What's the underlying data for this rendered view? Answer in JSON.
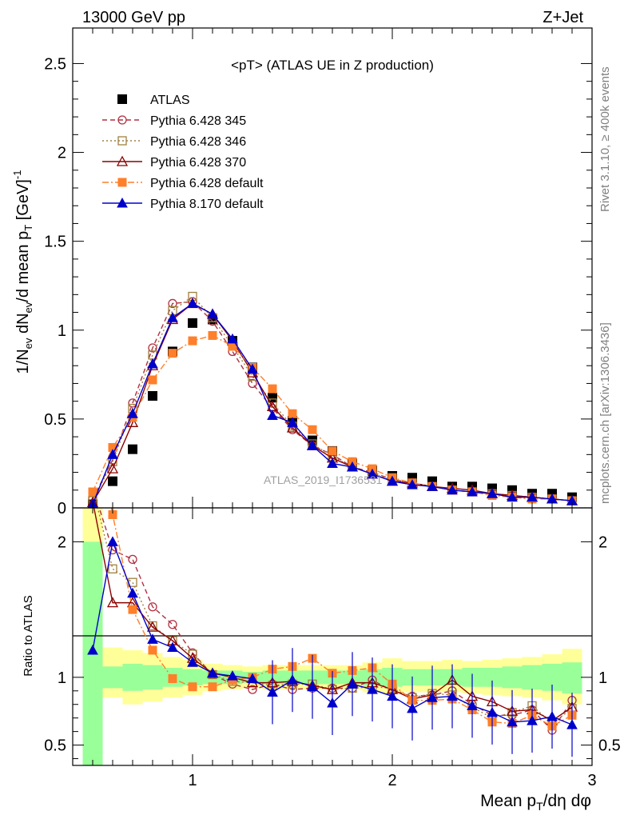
{
  "header": {
    "energy": "13000 GeV pp",
    "process": "Z+Jet"
  },
  "side_labels": {
    "rivet": "Rivet 3.1.10, ≥ 400k events",
    "source": "mcplots.cern.ch [arXiv:1306.3436]"
  },
  "watermark": "ATLAS_2019_I1736531",
  "colors": {
    "ATLAS": "#000000",
    "p345": "#b03040",
    "p346": "#a08040",
    "p370": "#8b0000",
    "p6def": "#ff7f2a",
    "p8def": "#0000cc",
    "band_yellow": "#ffff99",
    "band_green": "#99ff99"
  },
  "chart_data": [
    {
      "id": "main",
      "type": "line",
      "title": "<pT> (ATLAS UE in Z production)",
      "ylabel": "1/N_ev dN_ev/d mean p_T [GeV]^-1",
      "xlim": [
        0.4,
        3.0
      ],
      "ylim": [
        0,
        2.7
      ],
      "yticks": [
        0,
        0.5,
        1,
        1.5,
        2,
        2.5
      ],
      "ytick_labels": [
        "0",
        "0.5",
        "1",
        "1.5",
        "2",
        "2.5"
      ],
      "x": [
        0.5,
        0.6,
        0.7,
        0.8,
        0.9,
        1.0,
        1.1,
        1.2,
        1.3,
        1.4,
        1.5,
        1.6,
        1.7,
        1.8,
        1.9,
        2.0,
        2.1,
        2.2,
        2.3,
        2.4,
        2.5,
        2.6,
        2.7,
        2.8,
        2.9
      ],
      "legend": [
        "ATLAS",
        "Pythia 6.428 345",
        "Pythia 6.428 346",
        "Pythia 6.428 370",
        "Pythia 6.428 default",
        "Pythia 8.170 default"
      ],
      "series": [
        {
          "name": "ATLAS",
          "key": "ATLAS",
          "style": "marker-square",
          "values": [
            0.02,
            0.15,
            0.33,
            0.63,
            0.88,
            1.04,
            1.06,
            0.94,
            0.79,
            0.62,
            0.49,
            0.38,
            0.32,
            0.25,
            0.21,
            0.18,
            0.17,
            0.15,
            0.12,
            0.12,
            0.11,
            0.1,
            0.08,
            0.08,
            0.06
          ]
        },
        {
          "name": "Pythia 6.428 345",
          "key": "p345",
          "style": "dashed-circle",
          "values": [
            0.05,
            0.27,
            0.59,
            0.9,
            1.15,
            1.16,
            1.05,
            0.88,
            0.7,
            0.56,
            0.44,
            0.35,
            0.3,
            0.23,
            0.2,
            0.16,
            0.14,
            0.12,
            0.1,
            0.09,
            0.08,
            0.07,
            0.06,
            0.05,
            0.04
          ]
        },
        {
          "name": "Pythia 6.428 346",
          "key": "p346",
          "style": "dotted-square",
          "values": [
            0.04,
            0.26,
            0.56,
            0.86,
            1.11,
            1.19,
            1.07,
            0.91,
            0.74,
            0.59,
            0.46,
            0.36,
            0.29,
            0.23,
            0.19,
            0.16,
            0.14,
            0.12,
            0.1,
            0.09,
            0.08,
            0.07,
            0.06,
            0.05,
            0.04
          ]
        },
        {
          "name": "Pythia 6.428 370",
          "key": "p370",
          "style": "solid-triangle-open",
          "values": [
            0.03,
            0.22,
            0.48,
            0.8,
            1.06,
            1.15,
            1.09,
            0.94,
            0.76,
            0.57,
            0.45,
            0.35,
            0.28,
            0.23,
            0.19,
            0.15,
            0.14,
            0.12,
            0.11,
            0.1,
            0.08,
            0.07,
            0.06,
            0.05,
            0.04
          ]
        },
        {
          "name": "Pythia 6.428 default",
          "key": "p6def",
          "style": "dashdot-square",
          "values": [
            0.09,
            0.34,
            0.51,
            0.72,
            0.87,
            0.94,
            0.97,
            0.91,
            0.79,
            0.67,
            0.53,
            0.44,
            0.32,
            0.26,
            0.22,
            0.17,
            0.14,
            0.12,
            0.1,
            0.09,
            0.07,
            0.06,
            0.05,
            0.05,
            0.04
          ]
        },
        {
          "name": "Pythia 8.170 default",
          "key": "p8def",
          "style": "solid-triangle-filled",
          "values": [
            0.02,
            0.3,
            0.53,
            0.81,
            1.07,
            1.15,
            1.09,
            0.95,
            0.78,
            0.52,
            0.48,
            0.35,
            0.25,
            0.23,
            0.19,
            0.15,
            0.13,
            0.12,
            0.1,
            0.09,
            0.08,
            0.06,
            0.06,
            0.05,
            0.04
          ]
        }
      ]
    },
    {
      "id": "ratio",
      "type": "line",
      "ylabel": "Ratio to ATLAS",
      "xlabel": "Mean p_T/dη dφ",
      "xlim": [
        0.4,
        3.0
      ],
      "ylim": [
        0.35,
        2.25
      ],
      "yticks": [
        0.5,
        1,
        2
      ],
      "ytick_labels": [
        "0.5",
        "1",
        "2"
      ],
      "xticks": [
        1,
        2,
        3
      ],
      "xtick_labels": [
        "1",
        "2",
        "3"
      ],
      "x": [
        0.5,
        0.6,
        0.7,
        0.8,
        0.9,
        1.0,
        1.1,
        1.2,
        1.3,
        1.4,
        1.5,
        1.6,
        1.7,
        1.8,
        1.9,
        2.0,
        2.1,
        2.2,
        2.3,
        2.4,
        2.5,
        2.6,
        2.7,
        2.8,
        2.9
      ],
      "bands": {
        "edges": [
          0.45,
          0.55,
          0.65,
          0.75,
          0.85,
          0.95,
          1.05,
          1.15,
          1.25,
          1.35,
          1.45,
          1.55,
          1.65,
          1.75,
          1.85,
          1.95,
          2.05,
          2.15,
          2.25,
          2.35,
          2.45,
          2.55,
          2.65,
          2.75,
          2.85,
          2.95
        ],
        "yellow_lo": [
          0.35,
          0.85,
          0.8,
          0.82,
          0.85,
          0.87,
          0.9,
          0.91,
          0.92,
          0.91,
          0.91,
          0.91,
          0.91,
          0.91,
          0.89,
          0.88,
          0.89,
          0.89,
          0.89,
          0.88,
          0.87,
          0.86,
          0.85,
          0.83,
          0.8
        ],
        "yellow_hi": [
          2.25,
          1.22,
          1.2,
          1.18,
          1.15,
          1.13,
          1.1,
          1.09,
          1.08,
          1.09,
          1.09,
          1.09,
          1.09,
          1.09,
          1.11,
          1.14,
          1.12,
          1.12,
          1.13,
          1.12,
          1.13,
          1.14,
          1.15,
          1.17,
          1.21
        ],
        "green_lo": [
          0.35,
          0.92,
          0.9,
          0.91,
          0.93,
          0.94,
          0.95,
          0.95,
          0.96,
          0.95,
          0.95,
          0.95,
          0.95,
          0.95,
          0.94,
          0.93,
          0.94,
          0.94,
          0.94,
          0.93,
          0.93,
          0.92,
          0.91,
          0.9,
          0.88
        ],
        "green_hi": [
          2.0,
          1.08,
          1.1,
          1.09,
          1.07,
          1.06,
          1.05,
          1.05,
          1.04,
          1.05,
          1.05,
          1.05,
          1.05,
          1.05,
          1.06,
          1.07,
          1.06,
          1.06,
          1.06,
          1.07,
          1.07,
          1.08,
          1.09,
          1.1,
          1.11
        ]
      },
      "series": [
        {
          "name": "Pythia 6.428 345",
          "key": "p345",
          "style": "dashed-circle",
          "values": [
            2.4,
            1.94,
            1.87,
            1.52,
            1.39,
            1.18,
            1.02,
            0.95,
            0.91,
            0.95,
            0.91,
            0.92,
            0.92,
            0.92,
            0.98,
            0.9,
            0.86,
            0.87,
            0.9,
            0.8,
            0.72,
            0.72,
            0.76,
            0.61,
            0.83
          ]
        },
        {
          "name": "Pythia 6.428 346",
          "key": "p346",
          "style": "dotted-square",
          "values": [
            2.4,
            1.8,
            1.7,
            1.38,
            1.27,
            1.17,
            1.02,
            0.97,
            0.96,
            0.94,
            0.95,
            0.95,
            0.91,
            0.92,
            0.93,
            0.92,
            0.85,
            0.88,
            0.87,
            0.78,
            0.7,
            0.74,
            0.79,
            0.66,
            0.77
          ]
        },
        {
          "name": "Pythia 6.428 370",
          "key": "p370",
          "style": "solid-triangle-open",
          "values": [
            2.3,
            1.55,
            1.55,
            1.37,
            1.27,
            1.14,
            1.03,
            1.0,
            0.96,
            0.96,
            0.97,
            0.94,
            0.91,
            0.96,
            0.96,
            0.91,
            0.84,
            0.87,
            0.98,
            0.86,
            0.82,
            0.75,
            0.76,
            0.68,
            0.78
          ]
        },
        {
          "name": "Pythia 6.428 default",
          "key": "p6def",
          "style": "dashdot-square",
          "values": [
            3.0,
            2.2,
            1.5,
            1.2,
            0.99,
            0.93,
            0.93,
            0.98,
            1.0,
            1.06,
            1.08,
            1.14,
            1.03,
            1.05,
            1.07,
            0.95,
            0.83,
            0.83,
            0.84,
            0.76,
            0.67,
            0.66,
            0.72,
            0.64,
            0.72
          ]
        },
        {
          "name": "Pythia 8.170 default",
          "key": "p8def",
          "style": "solid-triangle-filled",
          "values": [
            1.2,
            2.0,
            1.62,
            1.28,
            1.22,
            1.11,
            1.03,
            1.01,
            0.99,
            0.89,
            0.98,
            0.93,
            0.81,
            0.95,
            0.91,
            0.86,
            0.77,
            0.85,
            0.86,
            0.79,
            0.74,
            0.67,
            0.68,
            0.71,
            0.65
          ]
        }
      ]
    }
  ]
}
